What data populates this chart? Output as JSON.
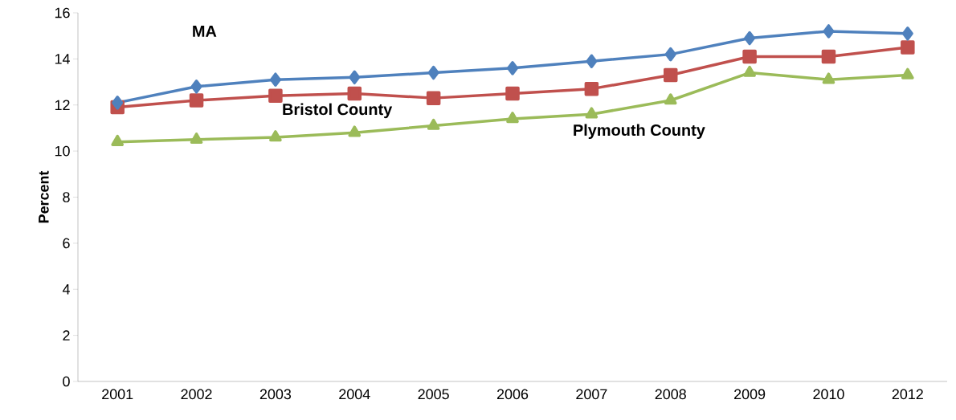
{
  "chart_data": {
    "type": "line",
    "ylabel": "Percent",
    "categories": [
      "2001",
      "2002",
      "2003",
      "2004",
      "2005",
      "2006",
      "2007",
      "2008",
      "2009",
      "2010",
      "2012"
    ],
    "series": [
      {
        "name": "MA",
        "color": "#4f81bd",
        "marker": "diamond",
        "values": [
          12.1,
          12.8,
          13.1,
          13.2,
          13.4,
          13.6,
          13.9,
          14.2,
          14.9,
          15.2,
          15.1
        ]
      },
      {
        "name": "Bristol County",
        "color": "#c0504d",
        "marker": "square",
        "values": [
          11.9,
          12.2,
          12.4,
          12.5,
          12.3,
          12.5,
          12.7,
          13.3,
          14.1,
          14.1,
          14.5
        ]
      },
      {
        "name": "Plymouth County",
        "color": "#9bbb59",
        "marker": "triangle",
        "values": [
          10.4,
          10.5,
          10.6,
          10.8,
          11.1,
          11.4,
          11.6,
          12.2,
          13.4,
          13.1,
          13.3
        ]
      }
    ],
    "ylim": [
      0,
      16
    ],
    "yticks": [
      0,
      2,
      4,
      6,
      8,
      10,
      12,
      14,
      16
    ],
    "grid": false,
    "line_style": "solid"
  }
}
